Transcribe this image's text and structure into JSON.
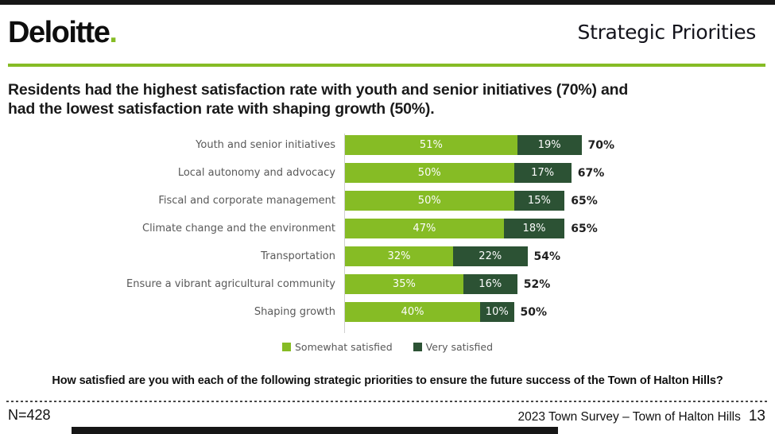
{
  "header": {
    "logo_text": "Deloitte",
    "logo_dot": ".",
    "title": "Strategic Priorities"
  },
  "headline": {
    "line1": "Residents had the highest satisfaction rate with youth and senior initiatives (70%) and",
    "line2": "had the lowest satisfaction rate with shaping growth (50%)."
  },
  "chart_data": {
    "type": "bar",
    "orientation": "horizontal",
    "stacked": true,
    "categories": [
      "Youth and senior initiatives",
      "Local autonomy and advocacy",
      "Fiscal and corporate management",
      "Climate change and the environment",
      "Transportation",
      "Ensure a vibrant agricultural community",
      "Shaping growth"
    ],
    "series": [
      {
        "name": "Somewhat satisfied",
        "color": "#86BC25",
        "values": [
          51,
          50,
          50,
          47,
          32,
          35,
          40
        ]
      },
      {
        "name": "Very satisfied",
        "color": "#2C5234",
        "values": [
          19,
          17,
          15,
          18,
          22,
          16,
          10
        ]
      }
    ],
    "totals": [
      "70%",
      "67%",
      "65%",
      "65%",
      "54%",
      "52%",
      "50%"
    ],
    "value_suffix": "%",
    "xlim": [
      0,
      100
    ],
    "legend_position": "bottom",
    "grid": false
  },
  "question": "How satisfied are you with each of the following strategic priorities to ensure the future success of the Town of Halton Hills?",
  "footer": {
    "sample_size": "N=428",
    "source": "2023 Town Survey – Town of Halton Hills",
    "page_number": "13"
  },
  "colors": {
    "accent_green": "#86BC25",
    "dark_green": "#2C5234",
    "label_gray": "#595959",
    "bar_black": "#161616"
  }
}
